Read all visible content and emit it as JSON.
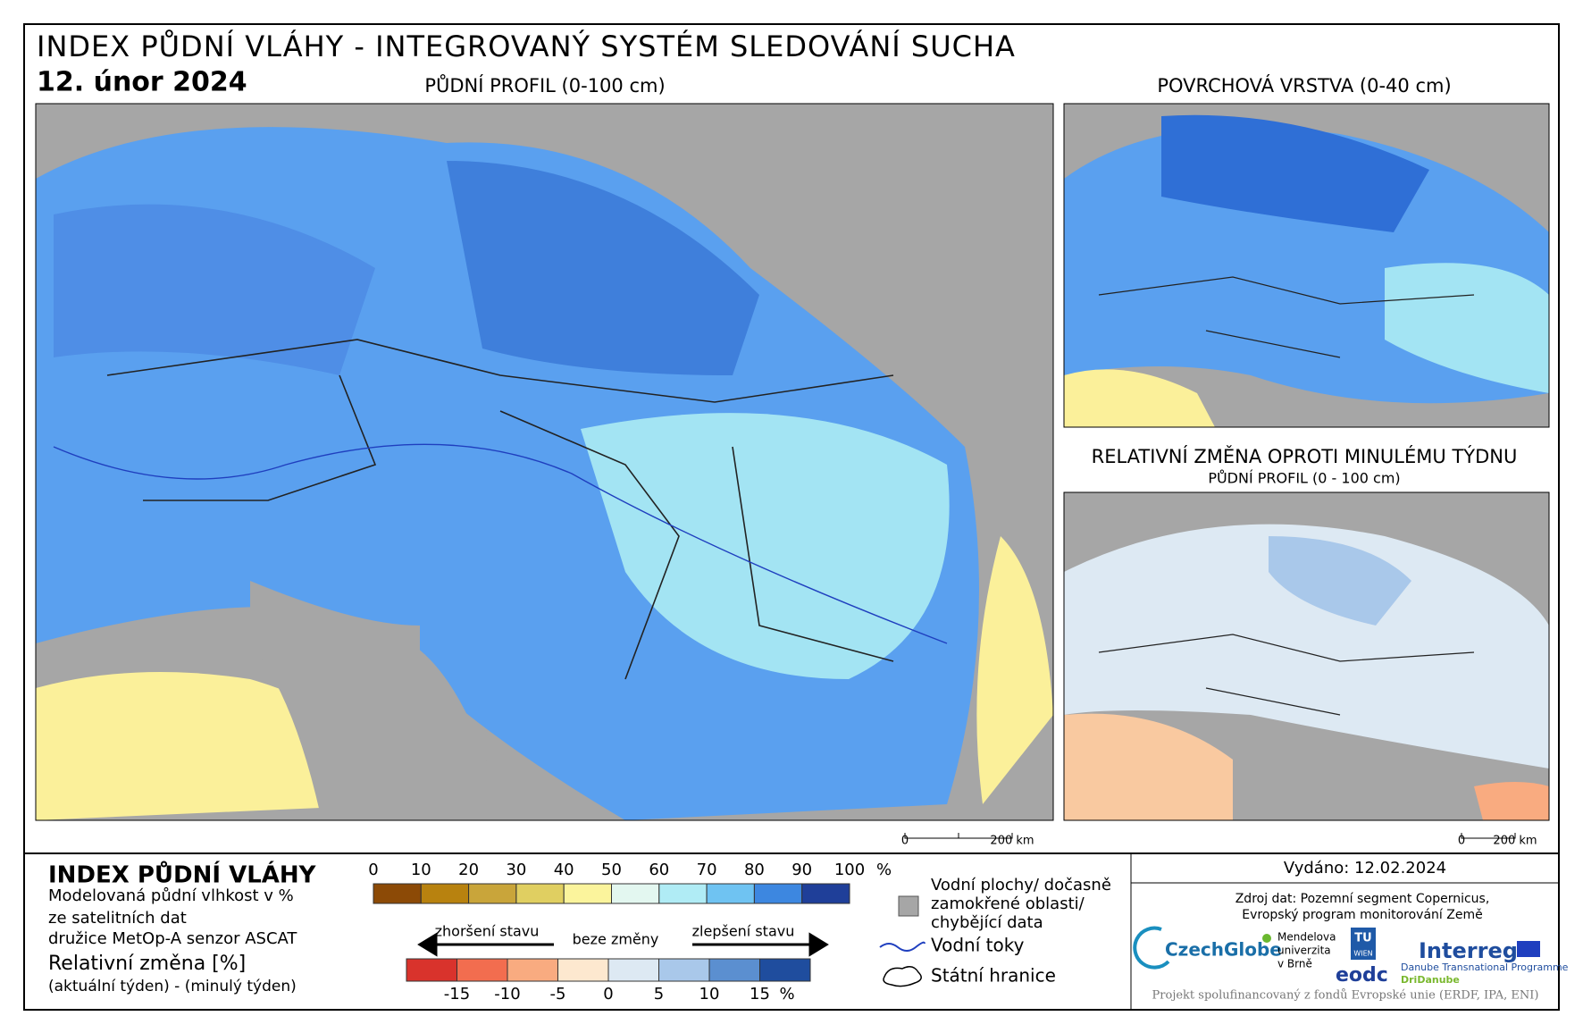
{
  "header": {
    "title": "INDEX PŮDNÍ VLÁHY - INTEGROVANÝ SYSTÉM SLEDOVÁNÍ SUCHA",
    "date": "12. únor 2024"
  },
  "maps": {
    "main": {
      "title": "PŮDNÍ PROFIL (0-100 cm)",
      "scale": [
        "0",
        "200 km"
      ]
    },
    "surface": {
      "title": "POVRCHOVÁ VRSTVA (0-40 cm)"
    },
    "change": {
      "title": "RELATIVNÍ ZMĚNA OPROTI MINULÉMU TÝDNU",
      "subtitle": "PŮDNÍ PROFIL (0 - 100 cm)",
      "scale": [
        "0",
        "200 km"
      ]
    }
  },
  "legend": {
    "title": "INDEX PŮDNÍ VLÁHY",
    "description": [
      "Modelovaná půdní vlhkost v %",
      "ze satelitních dat",
      "družice MetOp-A senzor ASCAT"
    ],
    "index_scale": {
      "ticks": [
        0,
        10,
        20,
        30,
        40,
        50,
        60,
        70,
        80,
        90,
        100
      ],
      "unit": "%",
      "colors": [
        "#8c4a06",
        "#b8820f",
        "#c9a53a",
        "#e0cf61",
        "#fbf49c",
        "#e3f7f0",
        "#b0ecf5",
        "#6fc3f2",
        "#3d87e0",
        "#1f3f99"
      ]
    },
    "change_title": "Relativní změna [%]",
    "change_note": "(aktuální týden) - (minulý týden)",
    "arrows": [
      "zhoršení stavu",
      "beze změny",
      "zlepšení stavu"
    ],
    "change_scale": {
      "ticks": [
        -15,
        -10,
        -5,
        0,
        5,
        10,
        15
      ],
      "unit": "%",
      "colors": [
        "#d9332c",
        "#f26d4f",
        "#f9ab80",
        "#fde8cf",
        "#dde9f3",
        "#a9c8ea",
        "#5b8fd0",
        "#1f4d9e"
      ]
    },
    "symbols": {
      "water": [
        "Vodní plochy/ dočasně",
        "zamokřené oblasti/",
        "chybějící data"
      ],
      "rivers": "Vodní toky",
      "borders": "Státní hranice"
    }
  },
  "info": {
    "issued": "Vydáno: 12.02.2024",
    "source": [
      "Zdroj dat: Pozemní segment Copernicus,",
      "Evropský program monitorování Země"
    ],
    "logos": [
      "CzechGlobe",
      "Mendelova",
      "univerzita",
      "v Brně",
      "TU",
      "WIEN",
      "eodc",
      "Interreg",
      "Danube Transnational Programme",
      "DriDanube"
    ],
    "footer": "Projekt spolufinancovaný z fondů Evropské unie (ERDF, IPA, ENI)"
  }
}
